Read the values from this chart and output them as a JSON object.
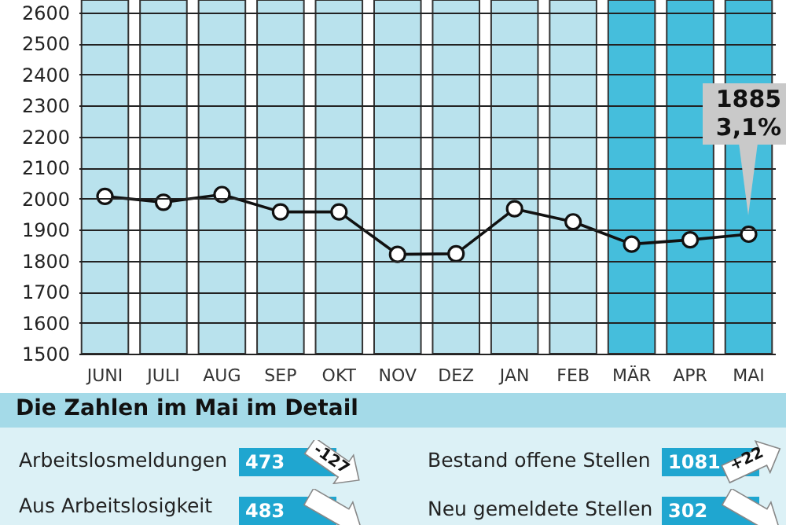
{
  "chart_data": {
    "type": "line",
    "categories": [
      "JUNI",
      "JULI",
      "AUG",
      "SEP",
      "OKT",
      "NOV",
      "DEZ",
      "JAN",
      "FEB",
      "MÄR",
      "APR",
      "MAI"
    ],
    "series": [
      {
        "color": "#111111",
        "values": [
          2007,
          1988,
          2013,
          1957,
          1957,
          1820,
          1822,
          1967,
          1925,
          1853,
          1867,
          1885
        ],
        "value_labels": [
          null,
          null,
          null,
          null,
          null,
          null,
          null,
          null,
          null,
          null,
          null,
          "1885"
        ]
      }
    ],
    "ylim": [
      1500,
      2640
    ],
    "yticks": [
      1500,
      1600,
      1700,
      1800,
      1900,
      2000,
      2100,
      2200,
      2300,
      2400,
      2500,
      2600
    ],
    "grid": "y",
    "marker": "circle",
    "line_style": "solid",
    "bands": [
      {
        "axis": "x",
        "from": "JUNI",
        "to": "JUNI",
        "color": "#b9e2ed"
      },
      {
        "axis": "x",
        "from": "JULI",
        "to": "JULI",
        "color": "#b9e2ed"
      },
      {
        "axis": "x",
        "from": "AUG",
        "to": "AUG",
        "color": "#b9e2ed"
      },
      {
        "axis": "x",
        "from": "SEP",
        "to": "SEP",
        "color": "#b9e2ed"
      },
      {
        "axis": "x",
        "from": "OKT",
        "to": "OKT",
        "color": "#b9e2ed"
      },
      {
        "axis": "x",
        "from": "NOV",
        "to": "NOV",
        "color": "#b9e2ed"
      },
      {
        "axis": "x",
        "from": "DEZ",
        "to": "DEZ",
        "color": "#b9e2ed"
      },
      {
        "axis": "x",
        "from": "JAN",
        "to": "JAN",
        "color": "#b9e2ed"
      },
      {
        "axis": "x",
        "from": "FEB",
        "to": "FEB",
        "color": "#b9e2ed"
      },
      {
        "axis": "x",
        "from": "MÄR",
        "to": "MÄR",
        "color": "#45bedc"
      },
      {
        "axis": "x",
        "from": "APR",
        "to": "APR",
        "color": "#45bedc"
      },
      {
        "axis": "x",
        "from": "MAI",
        "to": "MAI",
        "color": "#45bedc"
      }
    ],
    "annotations": [
      "3,1%",
      "Die Zahlen im Mai im Detail",
      "Arbeitslosmeldungen",
      "473",
      "-127",
      "Bestand offene Stellen",
      "1081",
      "+22",
      "Aus Arbeitslosigkeit",
      "483",
      "Neu gemeldete Stellen",
      "302"
    ]
  }
}
